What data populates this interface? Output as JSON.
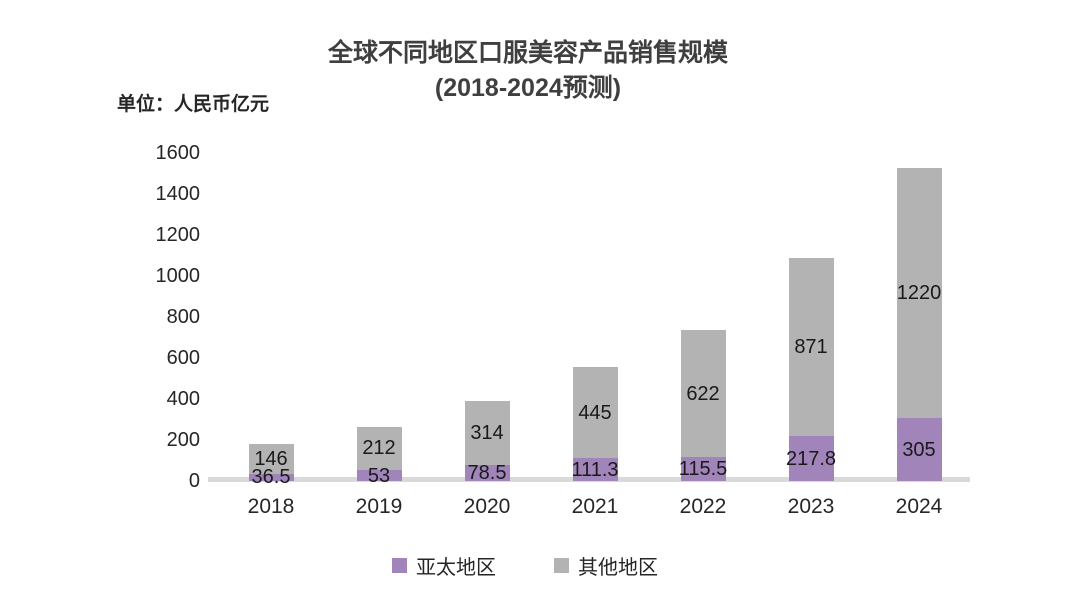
{
  "title": {
    "line1": "全球不同地区口服美容产品销售规模",
    "line2": "(2018-2024预测)"
  },
  "unit_label": "单位：人民币亿元",
  "chart_data": {
    "type": "bar",
    "stacked": true,
    "title": "全球不同地区口服美容产品销售规模 (2018-2024预测)",
    "unit": "人民币亿元",
    "categories": [
      "2018",
      "2019",
      "2020",
      "2021",
      "2022",
      "2023",
      "2024"
    ],
    "series": [
      {
        "name": "亚太地区",
        "color": "#a184b9",
        "values": [
          36.5,
          53,
          78.5,
          111.3,
          115.5,
          217.8,
          305
        ]
      },
      {
        "name": "其他地区",
        "color": "#b3b3b3",
        "values": [
          146,
          212,
          314,
          445,
          622,
          871,
          1220
        ]
      }
    ],
    "ylim": [
      0,
      1600
    ],
    "ytick_labels": [
      "0",
      "200",
      "400",
      "600",
      "800",
      "1000",
      "1200",
      "1400",
      "1600"
    ],
    "ytick_values": [
      0,
      200,
      400,
      600,
      800,
      1000,
      1200,
      1400,
      1600
    ],
    "grid": false,
    "legend_position": "bottom",
    "value_labels_shown": true,
    "colors": {
      "axis_line": "#d9d9d9",
      "title_text": "#3f3f3f",
      "label_text": "#262626"
    }
  }
}
